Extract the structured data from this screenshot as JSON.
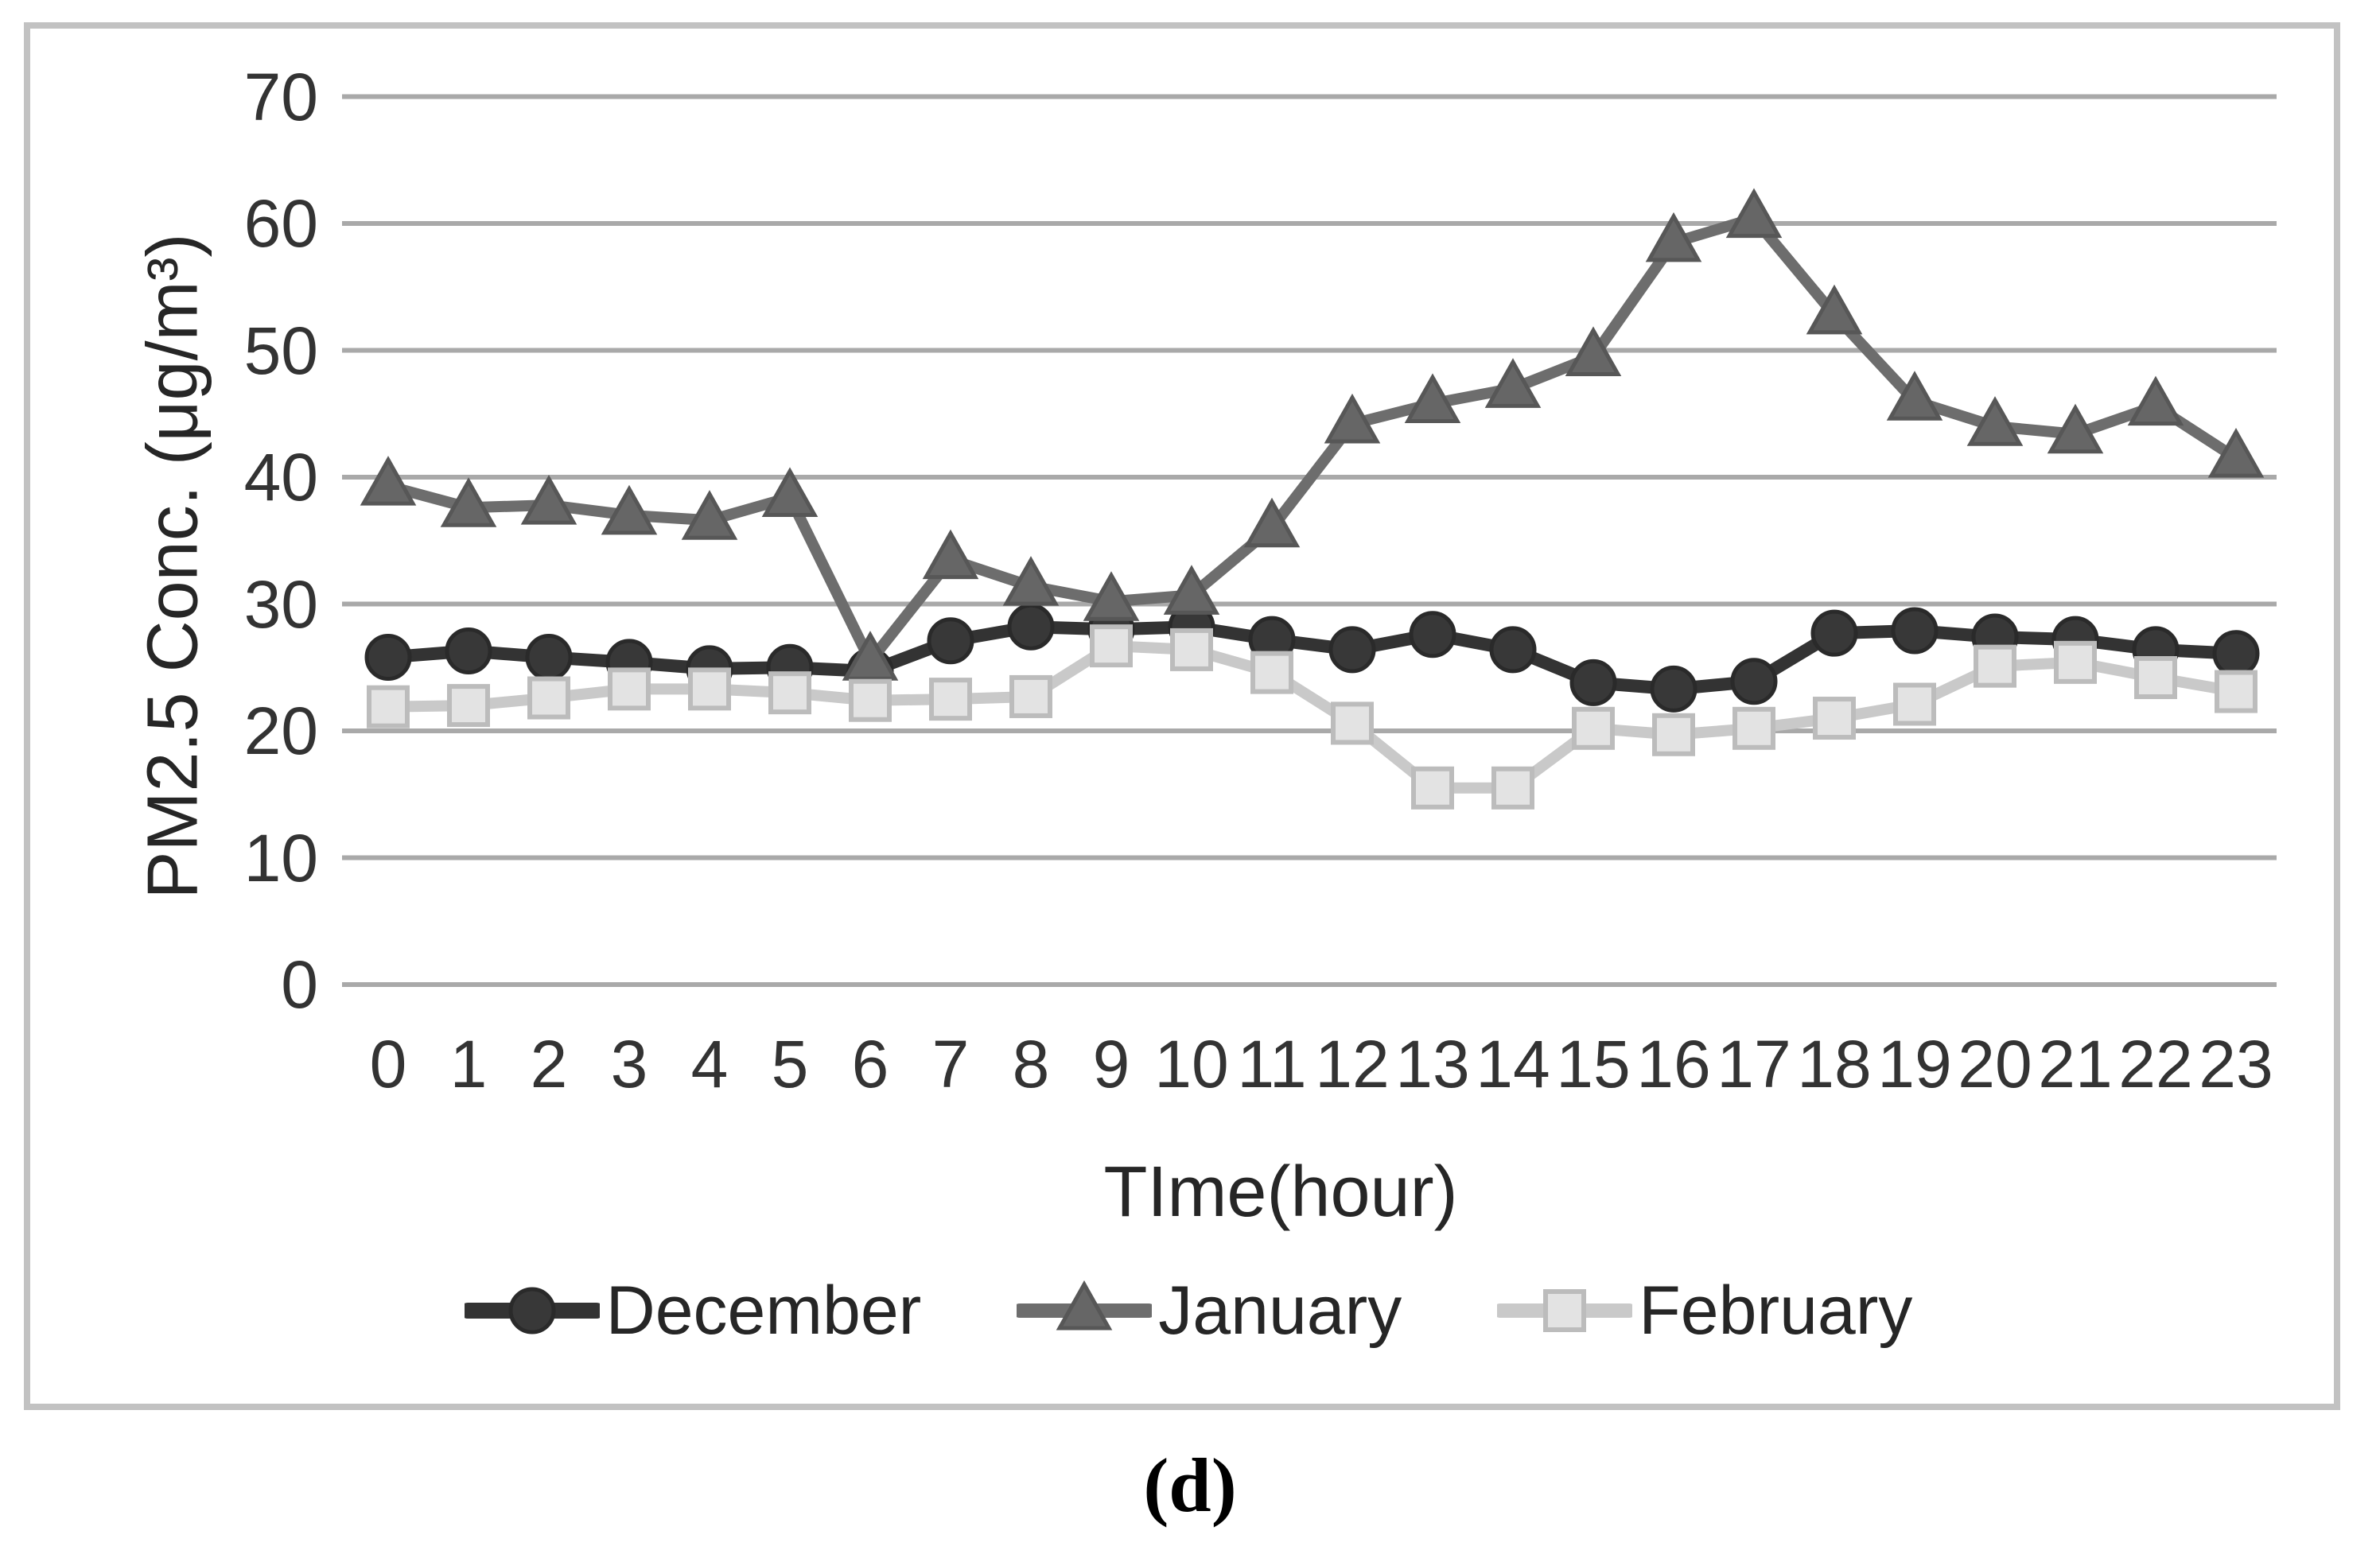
{
  "figure": {
    "caption": "(d)"
  },
  "chart_data": {
    "type": "line",
    "title": "",
    "xlabel": "TIme(hour)",
    "ylabel": "PM2.5 Conc. (μg/m³)",
    "categories": [
      "0",
      "1",
      "2",
      "3",
      "4",
      "5",
      "6",
      "7",
      "8",
      "9",
      "10",
      "11",
      "12",
      "13",
      "14",
      "15",
      "16",
      "17",
      "18",
      "19",
      "20",
      "21",
      "22",
      "23"
    ],
    "yticks": [
      0,
      10,
      20,
      30,
      40,
      50,
      60,
      70
    ],
    "ylim": [
      0,
      70
    ],
    "grid": true,
    "legend_position": "bottom",
    "colors": {
      "gridline": "#a9a9a9",
      "frame_border": "#c2c2c2",
      "december": "#333333",
      "january": "#6d6d6d",
      "february": "#c9c9c9",
      "february_fill": "#e3e3e3"
    },
    "series": [
      {
        "name": "December",
        "marker": "circle",
        "color": "#333333",
        "fill": "#383838",
        "stroke": "#2a2a2a",
        "line_width": 16,
        "values": [
          25.8,
          26.3,
          25.8,
          25.4,
          24.9,
          25.0,
          24.7,
          27.1,
          28.2,
          28.0,
          28.2,
          27.2,
          26.4,
          27.6,
          26.4,
          23.8,
          23.3,
          23.9,
          27.7,
          27.9,
          27.4,
          27.2,
          26.4,
          26.1
        ]
      },
      {
        "name": "January",
        "marker": "triangle",
        "color": "#6d6d6d",
        "fill": "#666666",
        "stroke": "#575757",
        "line_width": 14,
        "values": [
          39.3,
          37.6,
          37.8,
          37.0,
          36.6,
          38.4,
          25.5,
          33.5,
          31.4,
          30.2,
          30.7,
          36.0,
          44.2,
          45.8,
          47.0,
          49.5,
          58.5,
          60.4,
          52.8,
          46.0,
          44.0,
          43.4,
          45.6,
          41.5
        ]
      },
      {
        "name": "February",
        "marker": "square",
        "color": "#c9c9c9",
        "fill": "#e3e3e3",
        "stroke": "#bcbcbc",
        "line_width": 14,
        "values": [
          21.9,
          22.0,
          22.6,
          23.3,
          23.3,
          23.0,
          22.4,
          22.5,
          22.7,
          26.7,
          26.4,
          24.6,
          20.6,
          15.5,
          15.5,
          20.2,
          19.7,
          20.2,
          21.0,
          22.1,
          25.1,
          25.4,
          24.2,
          23.1
        ]
      }
    ]
  }
}
